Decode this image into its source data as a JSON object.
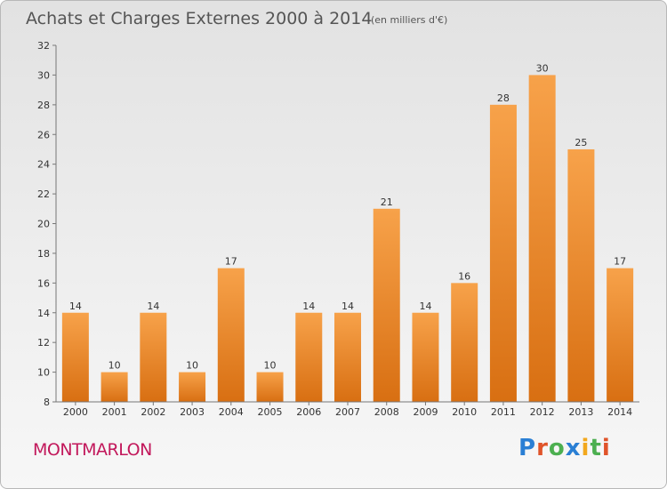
{
  "chart_data": {
    "type": "bar",
    "title": "Achats et Charges Externes 2000 à 2014",
    "subtitle": "(en milliers d'€)",
    "categories": [
      "2000",
      "2001",
      "2002",
      "2003",
      "2004",
      "2005",
      "2006",
      "2007",
      "2008",
      "2009",
      "2010",
      "2011",
      "2012",
      "2013",
      "2014"
    ],
    "values": [
      14,
      10,
      14,
      10,
      17,
      10,
      14,
      14,
      21,
      14,
      16,
      28,
      30,
      25,
      17
    ],
    "ylim": [
      8,
      32
    ],
    "yticks": [
      8,
      10,
      12,
      14,
      16,
      18,
      20,
      22,
      24,
      26,
      28,
      30,
      32
    ],
    "grid": false,
    "bar_color": "#f08a2a"
  },
  "town": "MONTMARLON",
  "logo": {
    "letters": [
      "P",
      "r",
      "o",
      "x",
      "i",
      "t",
      "i"
    ],
    "colors": [
      "#2a7fd4",
      "#e0542a",
      "#4caf50",
      "#2a7fd4",
      "#f2a81d",
      "#4caf50",
      "#e0542a"
    ]
  }
}
